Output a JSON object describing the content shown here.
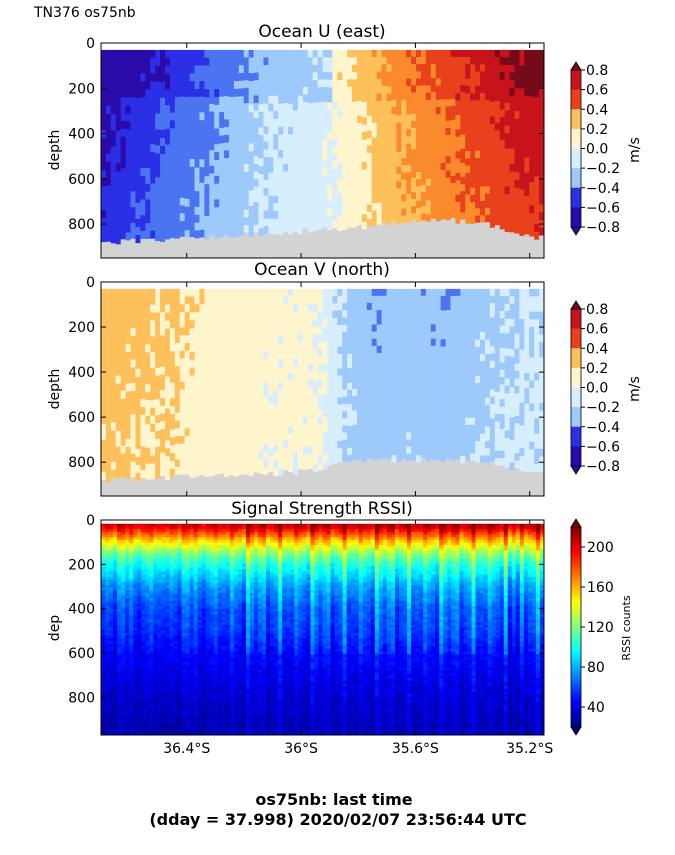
{
  "header": {
    "corner_label": "TN376 os75nb"
  },
  "caption": {
    "line1": "os75nb: last time",
    "line2": "(dday = 37.998) 2020/02/07 23:56:44 UTC"
  },
  "colors": {
    "bottom_mask": "#d3d3d3",
    "diverging": [
      "#2a0aa8",
      "#2b2fe6",
      "#4a74f0",
      "#9ec9fb",
      "#d6eefd",
      "#fff5cc",
      "#fdc05b",
      "#fb8a2c",
      "#e8411c",
      "#c7141c",
      "#750a18"
    ],
    "jet": [
      "#00007f",
      "#0000ff",
      "#007fff",
      "#00ffff",
      "#7fff7f",
      "#ffff00",
      "#ff7f00",
      "#ff0000",
      "#7f0000"
    ]
  },
  "chart_data": [
    {
      "type": "heatmap",
      "title": "Ocean U (east)",
      "ylabel": "depth",
      "yticks": [
        "0",
        "200",
        "400",
        "600",
        "800"
      ],
      "ylim": [
        950,
        0
      ],
      "xlim": [
        -36.7,
        -35.15
      ],
      "xticks": [],
      "colorbar": {
        "label": "m/s",
        "ticks": [
          "0.8",
          "0.6",
          "0.4",
          "0.2",
          "0.0",
          "−0.2",
          "−0.4",
          "−0.6",
          "−0.8"
        ],
        "min": -0.8,
        "max": 0.8
      },
      "x": [
        -36.68,
        -36.5,
        -36.3,
        -36.1,
        -35.95,
        -35.85,
        -35.75,
        -35.65,
        -35.5,
        -35.35,
        -35.2
      ],
      "values": [
        -0.75,
        -0.55,
        -0.35,
        -0.15,
        -0.1,
        0.05,
        0.2,
        0.35,
        0.5,
        0.65,
        0.8
      ],
      "bottom_depth": [
        880,
        870,
        860,
        840,
        830,
        820,
        810,
        790,
        780,
        800,
        860
      ]
    },
    {
      "type": "heatmap",
      "title": "Ocean V (north)",
      "ylabel": "depth",
      "yticks": [
        "0",
        "200",
        "400",
        "600",
        "800"
      ],
      "ylim": [
        950,
        0
      ],
      "xlim": [
        -36.7,
        -35.15
      ],
      "xticks": [],
      "colorbar": {
        "label": "m/s",
        "ticks": [
          "0.8",
          "0.6",
          "0.4",
          "0.2",
          "0.0",
          "−0.2",
          "−0.4",
          "−0.6",
          "−0.8"
        ],
        "min": -0.8,
        "max": 0.8
      },
      "x": [
        -36.68,
        -36.5,
        -36.3,
        -36.1,
        -35.95,
        -35.85,
        -35.75,
        -35.65,
        -35.5,
        -35.35,
        -35.2
      ],
      "values": [
        0.25,
        0.2,
        0.1,
        0.05,
        0.05,
        -0.2,
        -0.3,
        -0.25,
        -0.3,
        -0.2,
        -0.15
      ],
      "bottom_depth": [
        880,
        870,
        860,
        850,
        840,
        800,
        790,
        790,
        790,
        800,
        850
      ]
    },
    {
      "type": "heatmap",
      "title": "Signal Strength RSSI)",
      "ylabel": "dep",
      "yticks": [
        "0",
        "200",
        "400",
        "600",
        "800"
      ],
      "ylim": [
        970,
        0
      ],
      "xlim": [
        -36.7,
        -35.15
      ],
      "xticks": [
        "36.4°S",
        "36°S",
        "35.6°S",
        "35.2°S"
      ],
      "xtick_values": [
        -36.4,
        -36.0,
        -35.6,
        -35.2
      ],
      "colorbar": {
        "label": "RSSI counts",
        "ticks": [
          "200",
          "160",
          "120",
          "80",
          "40"
        ],
        "min": 20,
        "max": 220
      },
      "depth_profile": {
        "depths": [
          30,
          60,
          100,
          150,
          200,
          300,
          400,
          500,
          600,
          800,
          950
        ],
        "values": [
          205,
          180,
          150,
          120,
          100,
          75,
          60,
          55,
          45,
          35,
          30
        ]
      }
    }
  ]
}
